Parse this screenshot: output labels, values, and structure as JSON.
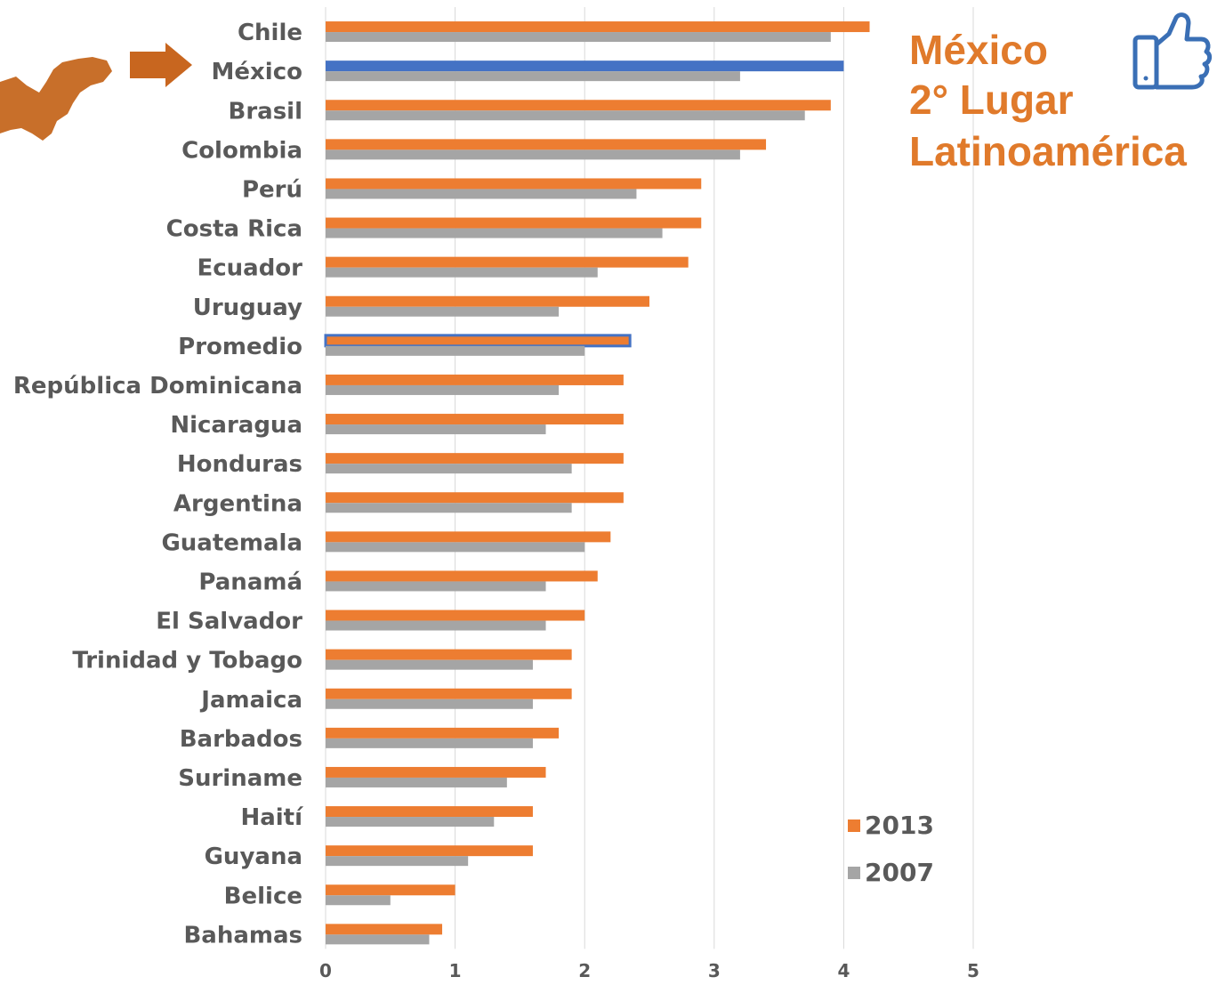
{
  "annotation": {
    "line1": "México",
    "line2": "2° Lugar",
    "line3": "Latinoamérica",
    "icon": "thumbs-up-icon",
    "map_icon": "mexico-map-icon",
    "arrow_icon": "arrow-right-icon"
  },
  "colors": {
    "s2013": "#ED7D31",
    "s2007": "#A5A5A5",
    "highlight": "#4472C4",
    "grid": "#D9D9D9",
    "label": "#595959",
    "callout": "#E07A2B"
  },
  "chart_data": {
    "type": "bar",
    "orientation": "horizontal",
    "title": "",
    "xlabel": "",
    "ylabel": "",
    "xlim": [
      0,
      5
    ],
    "xticks": [
      0,
      1,
      2,
      3,
      4,
      5
    ],
    "grid": true,
    "legend_position": "bottom-right",
    "categories": [
      "Chile",
      "México",
      "Brasil",
      "Colombia",
      "Perú",
      "Costa Rica",
      "Ecuador",
      "Uruguay",
      "Promedio",
      "República Dominicana",
      "Nicaragua",
      "Honduras",
      "Argentina",
      "Guatemala",
      "Panamá",
      "El Salvador",
      "Trinidad y Tobago",
      "Jamaica",
      "Barbados",
      "Suriname",
      "Haití",
      "Guyana",
      "Belice",
      "Bahamas"
    ],
    "highlighted": [
      "México",
      "Promedio"
    ],
    "series": [
      {
        "name": "2013",
        "values": [
          4.2,
          4.0,
          3.9,
          3.4,
          2.9,
          2.9,
          2.8,
          2.5,
          2.35,
          2.3,
          2.3,
          2.3,
          2.3,
          2.2,
          2.1,
          2.0,
          1.9,
          1.9,
          1.8,
          1.7,
          1.6,
          1.6,
          1.0,
          0.9
        ]
      },
      {
        "name": "2007",
        "values": [
          3.9,
          3.2,
          3.7,
          3.2,
          2.4,
          2.6,
          2.1,
          1.8,
          2.0,
          1.8,
          1.7,
          1.9,
          1.9,
          2.0,
          1.7,
          1.7,
          1.6,
          1.6,
          1.6,
          1.4,
          1.3,
          1.1,
          0.5,
          0.8
        ]
      }
    ]
  }
}
